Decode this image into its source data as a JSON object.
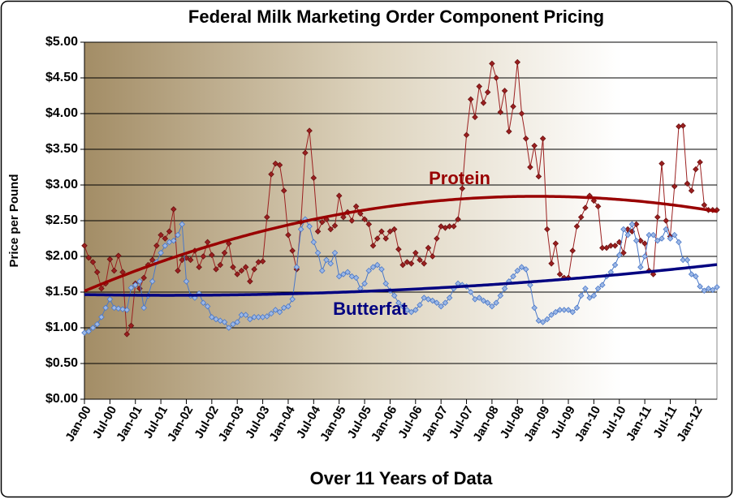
{
  "chart_data": {
    "type": "line",
    "title": "Federal Milk Marketing Order Component Pricing",
    "x_label": "Over 11 Years of Data",
    "y_label": "Price per Pound",
    "categories": [
      "Jan-00",
      null,
      null,
      null,
      null,
      null,
      "Jul-00",
      null,
      null,
      null,
      null,
      null,
      "Jan-01",
      null,
      null,
      null,
      null,
      null,
      "Jul-01",
      null,
      null,
      null,
      null,
      null,
      "Jan-02",
      null,
      null,
      null,
      null,
      null,
      "Jul-02",
      null,
      null,
      null,
      null,
      null,
      "Jan-03",
      null,
      null,
      null,
      null,
      null,
      "Jul-03",
      null,
      null,
      null,
      null,
      null,
      "Jan-04",
      null,
      null,
      null,
      null,
      null,
      "Jul-04",
      null,
      null,
      null,
      null,
      null,
      "Jan-05",
      null,
      null,
      null,
      null,
      null,
      "Jul-05",
      null,
      null,
      null,
      null,
      null,
      "Jan-06",
      null,
      null,
      null,
      null,
      null,
      "Jul-06",
      null,
      null,
      null,
      null,
      null,
      "Jan-07",
      null,
      null,
      null,
      null,
      null,
      "Jul-07",
      null,
      null,
      null,
      null,
      null,
      "Jan-08",
      null,
      null,
      null,
      null,
      null,
      "Jul-08",
      null,
      null,
      null,
      null,
      null,
      "Jan-09",
      null,
      null,
      null,
      null,
      null,
      "Jul-09",
      null,
      null,
      null,
      null,
      null,
      "Jan-10",
      null,
      null,
      null,
      null,
      null,
      "Jul-10",
      null,
      null,
      null,
      null,
      null,
      "Jan-11",
      null,
      null,
      null,
      null,
      null,
      "Jul-11",
      null,
      null,
      null,
      null,
      null,
      "Jan-12",
      null,
      null,
      null,
      null,
      null
    ],
    "series": [
      {
        "name": "Protein",
        "color": "#9b2020",
        "trend_color": "#990000",
        "values": [
          2.15,
          1.98,
          1.92,
          1.78,
          1.55,
          1.62,
          1.96,
          1.8,
          2.01,
          1.78,
          0.91,
          1.03,
          1.62,
          1.55,
          1.7,
          1.88,
          1.95,
          2.15,
          2.3,
          2.25,
          2.35,
          2.66,
          1.8,
          1.95,
          1.98,
          1.95,
          2.08,
          1.85,
          2.0,
          2.2,
          2.02,
          1.82,
          1.88,
          2.05,
          2.18,
          1.85,
          1.75,
          1.8,
          1.85,
          1.65,
          1.82,
          1.92,
          1.93,
          2.55,
          3.15,
          3.3,
          3.28,
          2.92,
          2.3,
          2.08,
          1.82,
          2.48,
          3.45,
          3.76,
          3.1,
          2.35,
          2.48,
          2.52,
          2.38,
          2.43,
          2.85,
          2.55,
          2.62,
          2.5,
          2.7,
          2.6,
          2.52,
          2.45,
          2.15,
          2.25,
          2.35,
          2.25,
          2.35,
          2.38,
          2.1,
          1.88,
          1.92,
          1.9,
          2.05,
          1.95,
          1.9,
          2.12,
          2.0,
          2.25,
          2.42,
          2.4,
          2.42,
          2.42,
          2.52,
          2.95,
          3.7,
          4.2,
          3.95,
          4.38,
          4.15,
          4.3,
          4.7,
          4.5,
          4.02,
          4.32,
          3.75,
          4.1,
          4.72,
          4.0,
          3.65,
          3.25,
          3.55,
          3.12,
          3.65,
          2.38,
          1.9,
          2.18,
          1.75,
          1.7,
          1.7,
          2.08,
          2.42,
          2.55,
          2.68,
          2.85,
          2.78,
          2.7,
          2.12,
          2.12,
          2.15,
          2.15,
          2.2,
          2.05,
          2.38,
          2.35,
          2.45,
          2.22,
          2.18,
          1.8,
          1.75,
          2.55,
          3.3,
          2.5,
          2.28,
          2.98,
          3.82,
          3.83,
          3.02,
          2.92,
          3.22,
          3.32,
          2.72,
          2.65,
          2.65,
          2.65
        ]
      },
      {
        "name": "Butterfat",
        "color": "#4a78c8",
        "trend_color": "#000080",
        "values": [
          0.93,
          0.95,
          1.0,
          1.05,
          1.15,
          1.28,
          1.4,
          1.28,
          1.27,
          1.26,
          1.25,
          1.56,
          1.6,
          1.65,
          1.28,
          1.45,
          1.65,
          1.92,
          2.05,
          2.15,
          2.2,
          2.22,
          2.3,
          2.45,
          1.65,
          1.45,
          1.42,
          1.48,
          1.35,
          1.3,
          1.15,
          1.12,
          1.1,
          1.08,
          1.0,
          1.05,
          1.08,
          1.18,
          1.18,
          1.12,
          1.15,
          1.15,
          1.15,
          1.16,
          1.2,
          1.25,
          1.22,
          1.28,
          1.3,
          1.4,
          1.85,
          2.38,
          2.52,
          2.42,
          2.2,
          2.05,
          1.8,
          1.95,
          1.9,
          2.05,
          1.72,
          1.75,
          1.78,
          1.72,
          1.7,
          1.55,
          1.62,
          1.8,
          1.85,
          1.88,
          1.82,
          1.62,
          1.52,
          1.45,
          1.35,
          1.3,
          1.25,
          1.22,
          1.25,
          1.32,
          1.42,
          1.4,
          1.38,
          1.35,
          1.3,
          1.35,
          1.42,
          1.55,
          1.62,
          1.6,
          1.58,
          1.5,
          1.4,
          1.42,
          1.38,
          1.35,
          1.3,
          1.35,
          1.45,
          1.55,
          1.65,
          1.72,
          1.8,
          1.85,
          1.82,
          1.6,
          1.28,
          1.1,
          1.08,
          1.12,
          1.18,
          1.22,
          1.25,
          1.25,
          1.25,
          1.22,
          1.28,
          1.45,
          1.55,
          1.42,
          1.45,
          1.55,
          1.6,
          1.72,
          1.78,
          1.88,
          2.02,
          2.38,
          2.3,
          2.45,
          2.22,
          1.85,
          2.0,
          2.3,
          2.3,
          2.22,
          2.25,
          2.38,
          2.25,
          2.3,
          2.2,
          1.95,
          1.95,
          1.75,
          1.72,
          1.58,
          1.52,
          1.55,
          1.53,
          1.57
        ]
      }
    ],
    "trendline": {
      "type": "polynomial",
      "order": 2
    },
    "ylim": [
      0,
      5
    ],
    "yticks": [
      {
        "value": 0,
        "label": "$0.00"
      },
      {
        "value": 0.5,
        "label": "$0.50"
      },
      {
        "value": 1,
        "label": "$1.00"
      },
      {
        "value": 1.5,
        "label": "$1.50"
      },
      {
        "value": 2,
        "label": "$2.00"
      },
      {
        "value": 2.5,
        "label": "$2.50"
      },
      {
        "value": 3,
        "label": "$3.00"
      },
      {
        "value": 3.5,
        "label": "$3.50"
      },
      {
        "value": 4,
        "label": "$4.00"
      },
      {
        "value": 4.5,
        "label": "$4.50"
      },
      {
        "value": 5,
        "label": "$5.00"
      }
    ],
    "grid": true
  }
}
